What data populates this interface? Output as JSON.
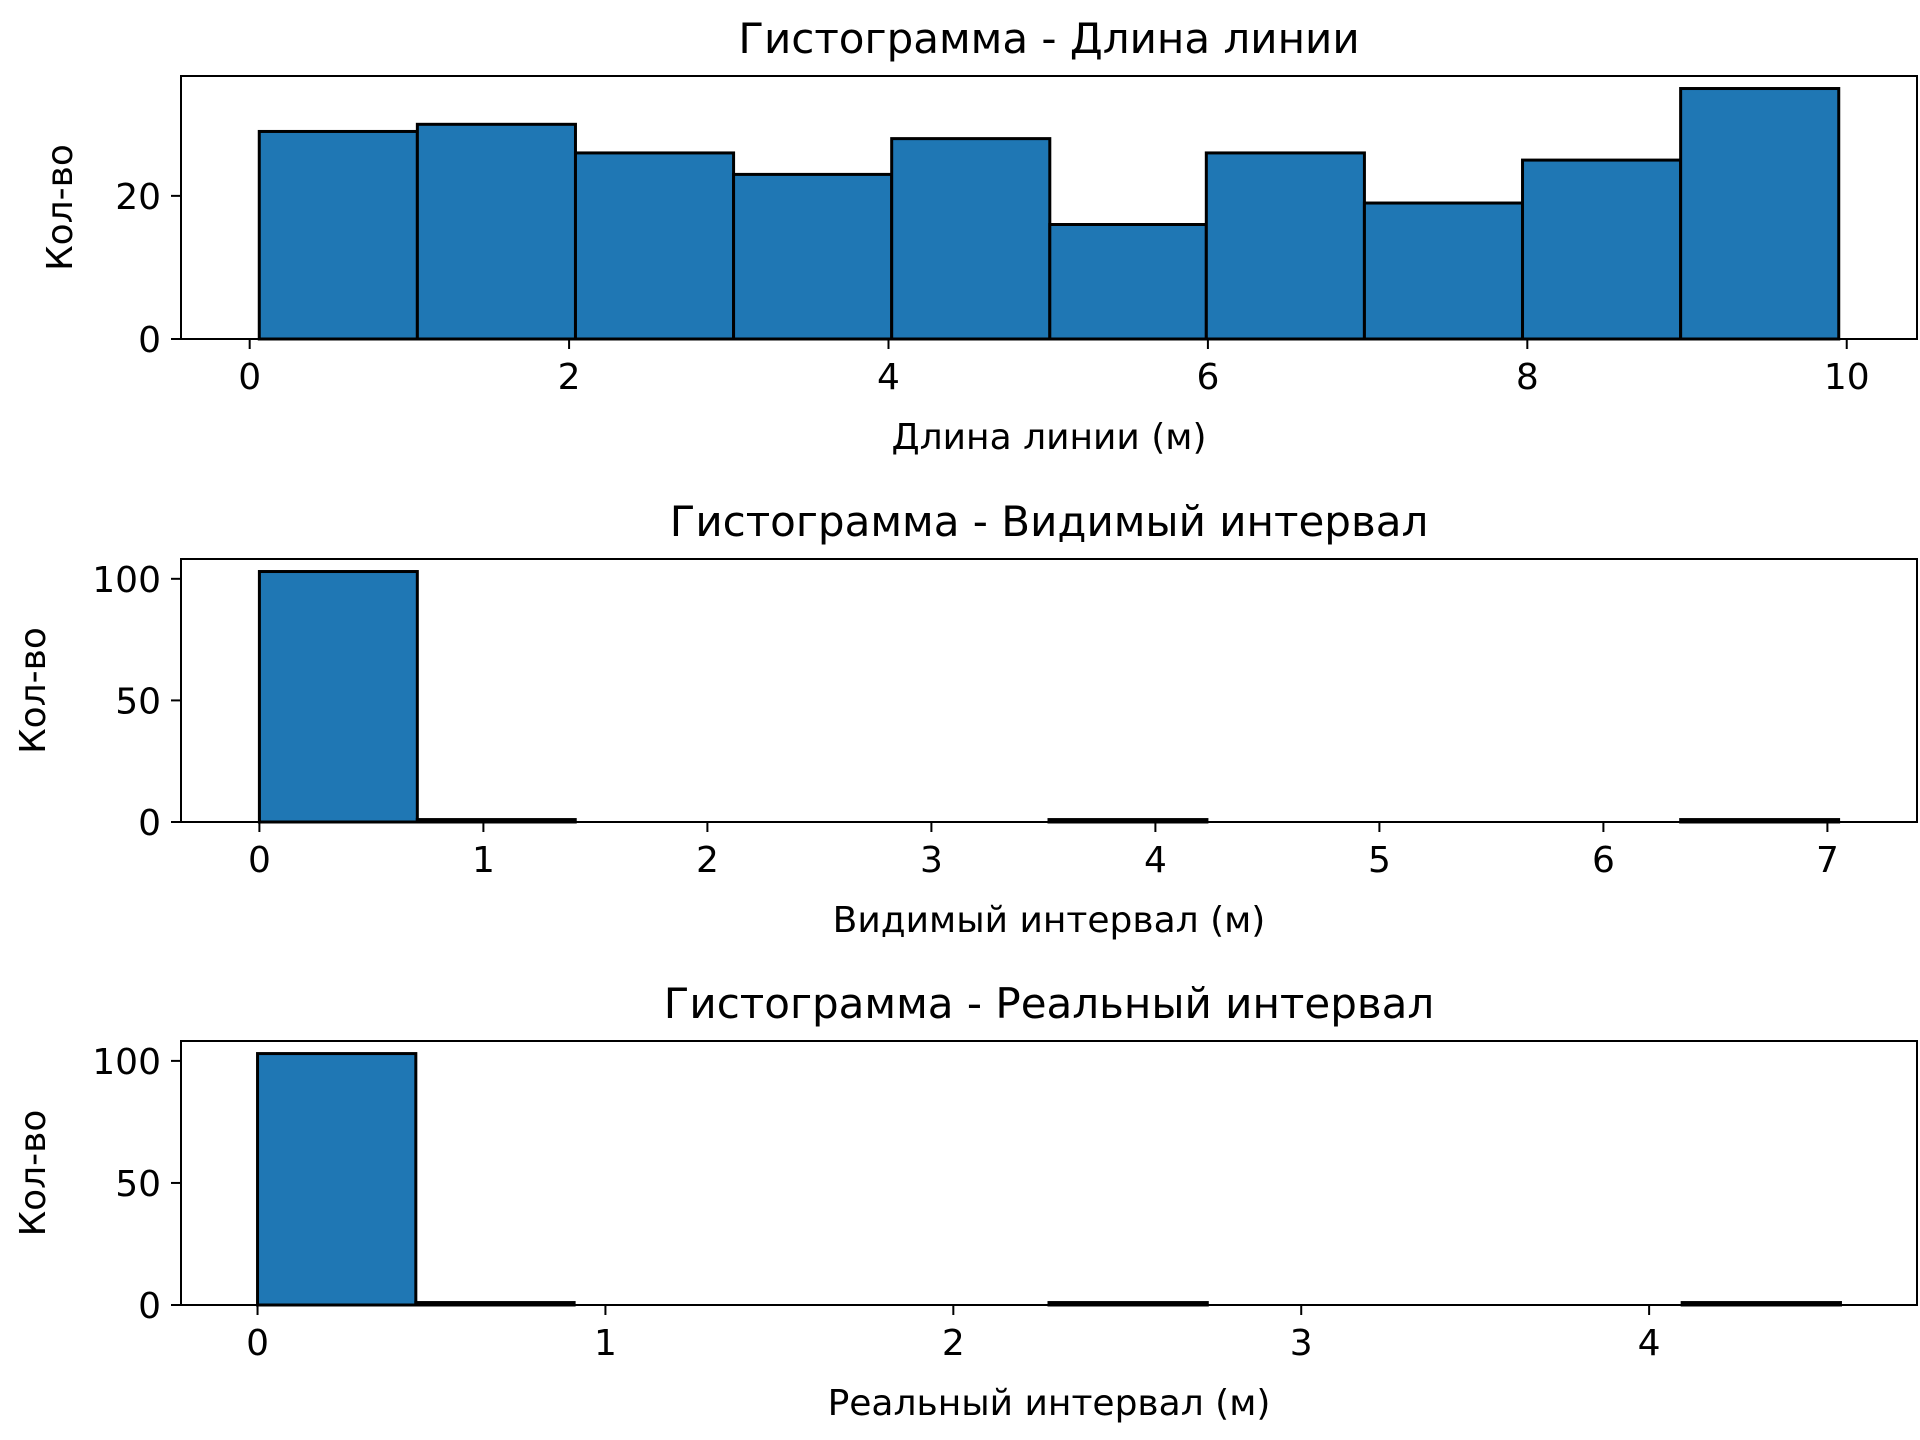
{
  "chart_data": [
    {
      "type": "bar",
      "title": "Гистограмма - Длина линии",
      "xlabel": "Длина линии (м)",
      "ylabel": "Кол-во",
      "bar_color": "#1f77b4",
      "edge_color": "#000000",
      "bin_edges": [
        0.06,
        1.05,
        2.04,
        3.03,
        4.02,
        5.01,
        5.99,
        6.98,
        7.97,
        8.96,
        9.95
      ],
      "values": [
        29,
        30,
        26,
        23,
        28,
        16,
        26,
        19,
        25,
        35
      ],
      "xlim": [
        -0.43,
        10.44
      ],
      "ylim": [
        0,
        36.75
      ],
      "xticks": [
        0,
        2,
        4,
        6,
        8,
        10
      ],
      "yticks": [
        0,
        20
      ],
      "xtick_labels": [
        "0",
        "2",
        "4",
        "6",
        "8",
        "10"
      ],
      "ytick_labels": [
        "0",
        "20"
      ]
    },
    {
      "type": "bar",
      "title": "Гистограмма - Видимый интервал",
      "xlabel": "Видимый интервал (м)",
      "ylabel": "Кол-во",
      "bar_color": "#1f77b4",
      "edge_color": "#000000",
      "bin_edges": [
        0.0,
        0.705,
        1.41,
        2.115,
        2.82,
        3.525,
        4.23,
        4.935,
        5.64,
        6.345,
        7.05
      ],
      "values": [
        103,
        1,
        0,
        0,
        0,
        1,
        0,
        0,
        0,
        1
      ],
      "xlim": [
        -0.35,
        7.4
      ],
      "ylim": [
        0,
        108.15
      ],
      "xticks": [
        0,
        1,
        2,
        3,
        4,
        5,
        6,
        7
      ],
      "yticks": [
        0,
        50,
        100
      ],
      "xtick_labels": [
        "0",
        "1",
        "2",
        "3",
        "4",
        "5",
        "6",
        "7"
      ],
      "ytick_labels": [
        "0",
        "50",
        "100"
      ]
    },
    {
      "type": "bar",
      "title": "Гистограмма - Реальный интервал",
      "xlabel": "Реальный интервал (м)",
      "ylabel": "Кол-во",
      "bar_color": "#1f77b4",
      "edge_color": "#000000",
      "bin_edges": [
        0.0,
        0.455,
        0.91,
        1.365,
        1.82,
        2.275,
        2.73,
        3.185,
        3.64,
        4.095,
        4.55
      ],
      "values": [
        103,
        1,
        0,
        0,
        0,
        1,
        0,
        0,
        0,
        1
      ],
      "xlim": [
        -0.22,
        4.77
      ],
      "ylim": [
        0,
        108.15
      ],
      "xticks": [
        0,
        1,
        2,
        3,
        4
      ],
      "yticks": [
        0,
        50,
        100
      ],
      "xtick_labels": [
        "0",
        "1",
        "2",
        "3",
        "4"
      ],
      "ytick_labels": [
        "0",
        "50",
        "100"
      ]
    }
  ]
}
